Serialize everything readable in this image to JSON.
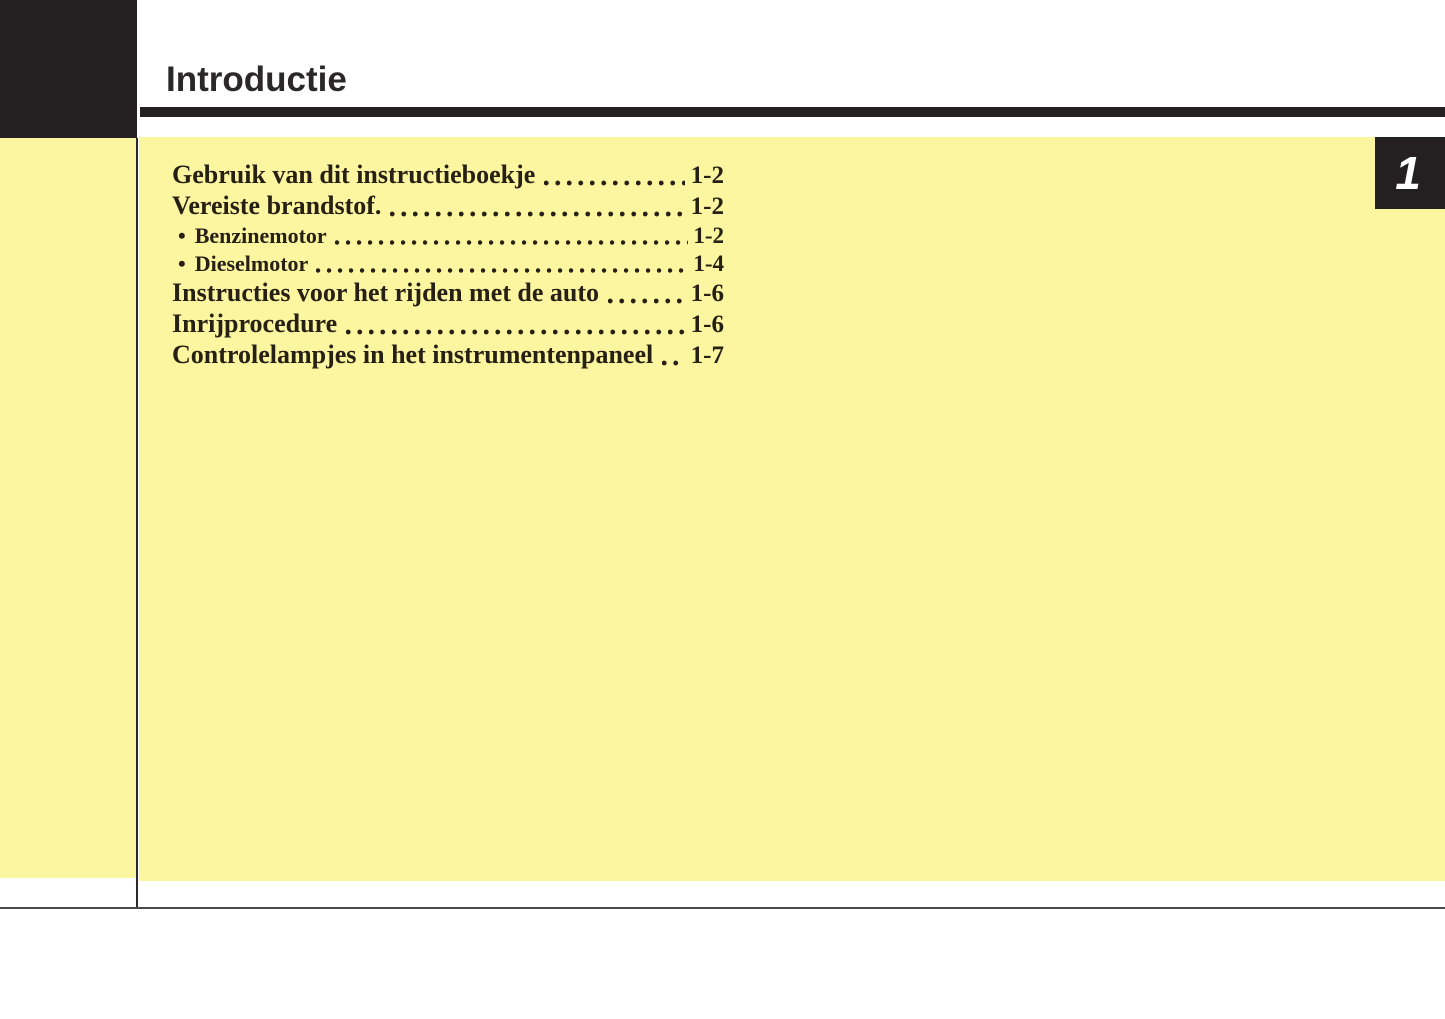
{
  "header": {
    "title": "Introductie"
  },
  "chapter_tab": {
    "number": "1"
  },
  "toc": {
    "bullet_char": "•",
    "entries": [
      {
        "label": "Gebruik van dit instructieboekje",
        "page": "1-2",
        "level": 0
      },
      {
        "label": "Vereiste brandstof.",
        "page": "1-2",
        "level": 0
      },
      {
        "label": "Benzinemotor",
        "page": "1-2",
        "level": 1
      },
      {
        "label": "Dieselmotor",
        "page": "1-4",
        "level": 1
      },
      {
        "label": "Instructies voor het rijden met de auto",
        "page": "1-6",
        "level": 0
      },
      {
        "label": "Inrijprocedure",
        "page": "1-6",
        "level": 0
      },
      {
        "label": "Controlelampjes in het instrumentenpaneel",
        "page": "1-7",
        "level": 0
      }
    ]
  },
  "colors": {
    "panel_yellow": "#FDF6A1",
    "ink_black": "#242021",
    "toc_text": "#262015",
    "tab_number": "#FFFFFF",
    "footer_rule": "#4A4A4A"
  }
}
